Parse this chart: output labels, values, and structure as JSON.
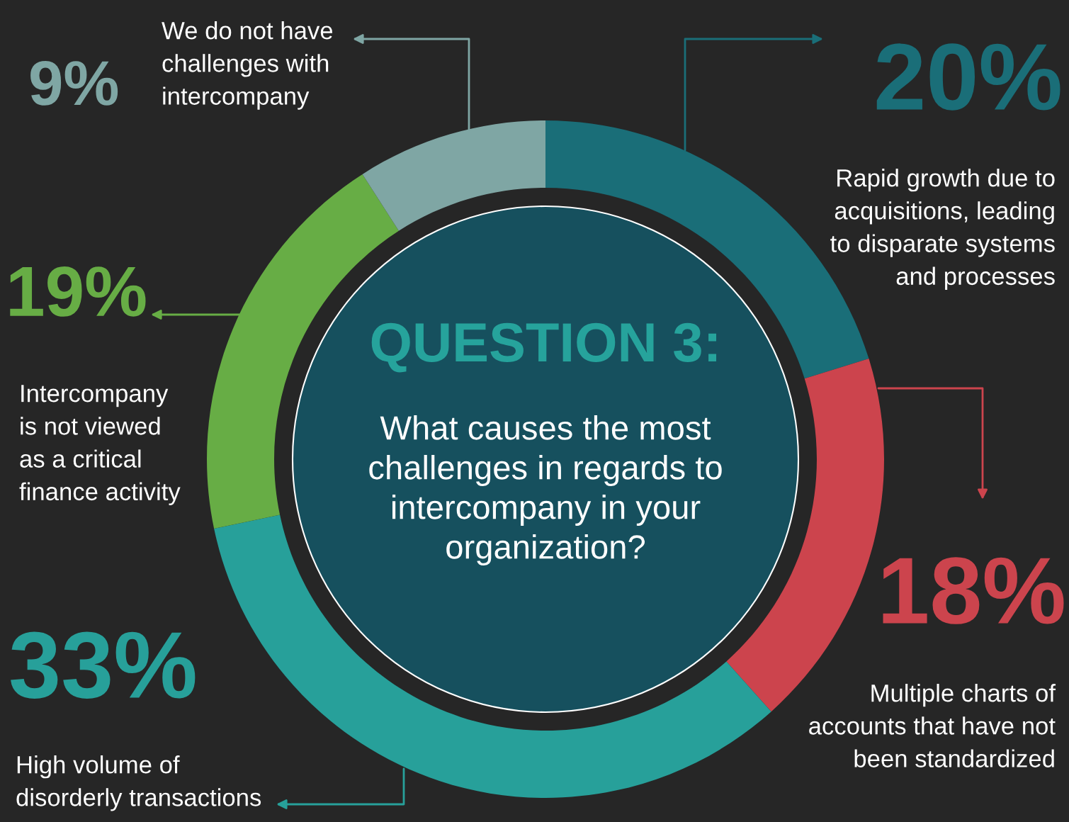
{
  "chart_data": {
    "type": "donut",
    "title": "QUESTION 3:",
    "subtitle": "What causes the most\nchallenges in regards to\nintercompany in your\norganization?",
    "categories": [
      "Rapid growth due to\nacquisitions, leading\nto disparate systems\nand processes",
      "Multiple charts of\naccounts that have not\nbeen standardized",
      "High volume of\ndisorderly transactions",
      "Intercompany\nis not viewed\nas a critical\nfinance activity",
      "We do not have\nchallenges with\nintercompany"
    ],
    "values": [
      20,
      18,
      33,
      19,
      9
    ],
    "value_labels": [
      "20%",
      "18%",
      "33%",
      "19%",
      "9%"
    ],
    "colors": [
      "#1a6e78",
      "#cc444d",
      "#27a09a",
      "#67ad45",
      "#7fa6a4"
    ]
  }
}
